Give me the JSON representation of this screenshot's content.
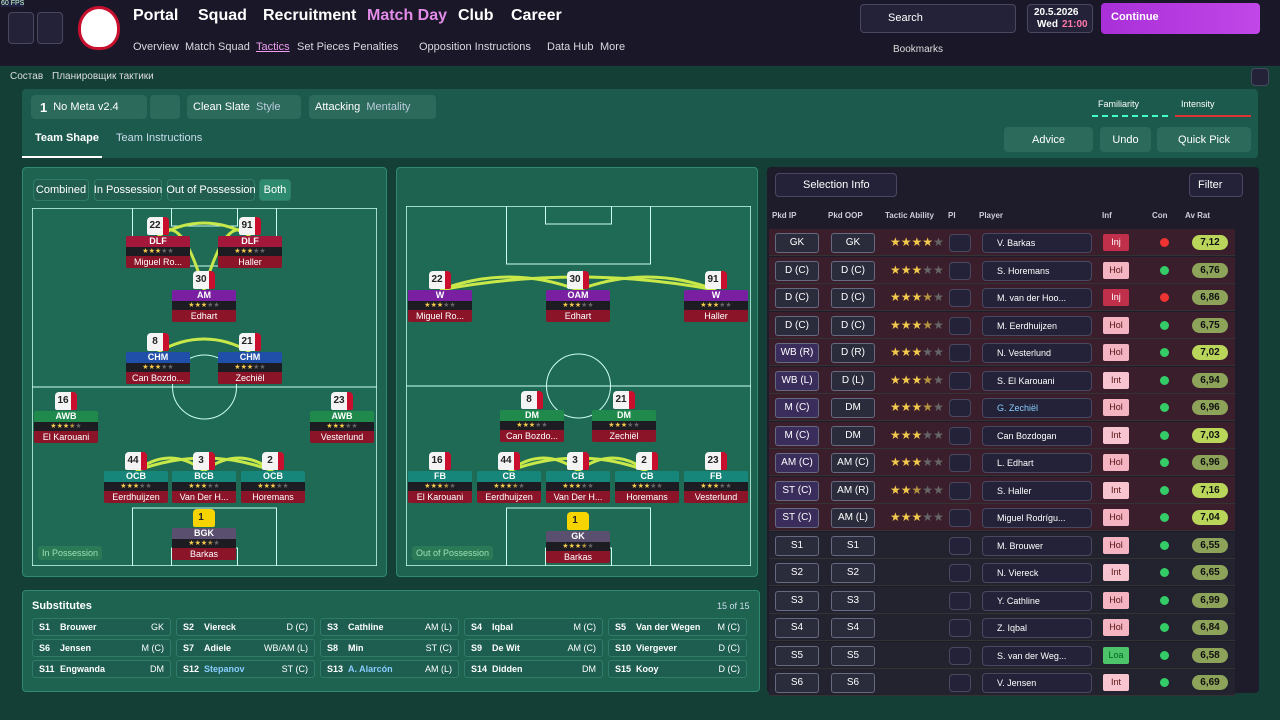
{
  "top": {
    "fps": "60 FPS",
    "menu": [
      "Portal",
      "Squad",
      "Recruitment",
      "Match Day",
      "Club",
      "Career"
    ],
    "submenu": [
      "Overview",
      "Match Squad",
      "Tactics",
      "Set Pieces",
      "Penalties",
      "Opposition Instructions",
      "Data Hub",
      "More"
    ],
    "search": "Search",
    "date": "20.5.2026",
    "weekday": "Wed",
    "time": "21:00",
    "continue": "Continue",
    "bookmarks": "Bookmarks"
  },
  "breadcrumb": [
    "Состав",
    "Планировщик тактики"
  ],
  "tactic": {
    "slot": "1",
    "name": "No Meta v2.4",
    "style": "Clean Slate",
    "style_label": "Style",
    "mentality": "Attacking",
    "mentality_label": "Mentality",
    "familiarity": "Familiarity",
    "intensity": "Intensity"
  },
  "tabs": [
    "Team Shape",
    "Team Instructions"
  ],
  "actions": [
    "Advice",
    "Undo",
    "Quick Pick"
  ],
  "pitch_filters": [
    "Combined",
    "In Possession",
    "Out of Possession",
    "Both"
  ],
  "pitches": [
    {
      "label": "In Possession",
      "players": [
        {
          "number": "22",
          "role": "DLF",
          "name": "Miguel Ro...",
          "stars": 3,
          "color": "#a3173a"
        },
        {
          "number": "91",
          "role": "DLF",
          "name": "Haller",
          "stars": 3,
          "color": "#a3173a"
        },
        {
          "number": "30",
          "role": "AM",
          "name": "Edhart",
          "stars": 3,
          "color": "#7b1fa2"
        },
        {
          "number": "8",
          "role": "CHM",
          "name": "Can Bozdo...",
          "stars": 3,
          "color": "#1f4fa8"
        },
        {
          "number": "21",
          "role": "CHM",
          "name": "Zechiël",
          "stars": 3,
          "color": "#1f4fa8"
        },
        {
          "number": "16",
          "role": "AWB",
          "name": "El Karouani",
          "stars": 3.5,
          "color": "#1f8a4c"
        },
        {
          "number": "23",
          "role": "AWB",
          "name": "Vesterlund",
          "stars": 3,
          "color": "#1f8a4c"
        },
        {
          "number": "44",
          "role": "OCB",
          "name": "Eerdhuijzen",
          "stars": 3,
          "color": "#17867a"
        },
        {
          "number": "3",
          "role": "BCB",
          "name": "Van Der H...",
          "stars": 3,
          "color": "#17867a"
        },
        {
          "number": "2",
          "role": "OCB",
          "name": "Horemans",
          "stars": 3,
          "color": "#17867a"
        },
        {
          "number": "1",
          "role": "BGK",
          "name": "Barkas",
          "stars": 3.5,
          "color": "#5a4f6e"
        }
      ]
    },
    {
      "label": "Out of Possession",
      "players": [
        {
          "number": "22",
          "role": "W",
          "name": "Miguel Ro...",
          "stars": 3,
          "color": "#7b1fa2"
        },
        {
          "number": "30",
          "role": "OAM",
          "name": "Edhart",
          "stars": 3,
          "color": "#7b1fa2"
        },
        {
          "number": "91",
          "role": "W",
          "name": "Haller",
          "stars": 3,
          "color": "#7b1fa2"
        },
        {
          "number": "8",
          "role": "DM",
          "name": "Can Bozdo...",
          "stars": 3,
          "color": "#1f8a4c"
        },
        {
          "number": "21",
          "role": "DM",
          "name": "Zechiël",
          "stars": 3,
          "color": "#1f8a4c"
        },
        {
          "number": "16",
          "role": "FB",
          "name": "El Karouani",
          "stars": 3.5,
          "color": "#17867a"
        },
        {
          "number": "44",
          "role": "CB",
          "name": "Eerdhuijzen",
          "stars": 3.5,
          "color": "#17867a"
        },
        {
          "number": "3",
          "role": "CB",
          "name": "Van Der H...",
          "stars": 3,
          "color": "#17867a"
        },
        {
          "number": "2",
          "role": "CB",
          "name": "Horemans",
          "stars": 3,
          "color": "#17867a"
        },
        {
          "number": "23",
          "role": "FB",
          "name": "Vesterlund",
          "stars": 3,
          "color": "#17867a"
        },
        {
          "number": "1",
          "role": "GK",
          "name": "Barkas",
          "stars": 3.5,
          "color": "#5a4f6e"
        }
      ]
    }
  ],
  "substitutes": {
    "title": "Substitutes",
    "count": "15 of 15",
    "players": [
      [
        "S1",
        "Brouwer",
        "GK"
      ],
      [
        "S2",
        "Viereck",
        "D (C)"
      ],
      [
        "S3",
        "Cathline",
        "AM (L)"
      ],
      [
        "S4",
        "Iqbal",
        "M (C)"
      ],
      [
        "S5",
        "Van der Wegen",
        "M (C)"
      ],
      [
        "S6",
        "Jensen",
        "M (C)"
      ],
      [
        "S7",
        "Adiele",
        "WB/AM (L)"
      ],
      [
        "S8",
        "Min",
        "ST (C)"
      ],
      [
        "S9",
        "De Wit",
        "AM (C)"
      ],
      [
        "S10",
        "Viergever",
        "D (C)"
      ],
      [
        "S11",
        "Engwanda",
        "DM"
      ],
      [
        "S12",
        "Stepanov",
        "ST (C)"
      ],
      [
        "S13",
        "A. Alarcón",
        "AM (L)"
      ],
      [
        "S14",
        "Didden",
        "DM"
      ],
      [
        "S15",
        "Kooy",
        "D (C)"
      ]
    ]
  },
  "selection": {
    "title": "Selection Info",
    "filter": "Filter",
    "columns": [
      "Pkd IP",
      "Pkd OOP",
      "Tactic Ability",
      "PI",
      "Player",
      "Inf",
      "Con",
      "Av Rat"
    ],
    "rows": [
      {
        "ip": "GK",
        "oop": "GK",
        "ability": 4,
        "player": "V. Barkas",
        "inf": "Inj",
        "rating": "7,12"
      },
      {
        "ip": "D (C)",
        "oop": "D (C)",
        "ability": 3,
        "player": "S. Horemans",
        "inf": "Hol",
        "rating": "6,76"
      },
      {
        "ip": "D (C)",
        "oop": "D (C)",
        "ability": 3.5,
        "player": "M. van der Hoo...",
        "inf": "Inj",
        "rating": "6,86"
      },
      {
        "ip": "D (C)",
        "oop": "D (C)",
        "ability": 3.5,
        "player": "M. Eerdhuijzen",
        "inf": "Hol",
        "rating": "6,75"
      },
      {
        "ip": "WB (R)",
        "oop": "D (R)",
        "ability": 3,
        "player": "N. Vesterlund",
        "inf": "Hol",
        "rating": "7,02"
      },
      {
        "ip": "WB (L)",
        "oop": "D (L)",
        "ability": 3.5,
        "player": "S. El Karouani",
        "inf": "Int",
        "rating": "6,94"
      },
      {
        "ip": "M (C)",
        "oop": "DM",
        "ability": 3.5,
        "player": "G. Zechiël",
        "inf": "Hol",
        "rating": "6,96"
      },
      {
        "ip": "M (C)",
        "oop": "DM",
        "ability": 3,
        "player": "Can Bozdogan",
        "inf": "Int",
        "rating": "7,03"
      },
      {
        "ip": "AM (C)",
        "oop": "AM (C)",
        "ability": 3,
        "player": "L. Edhart",
        "inf": "Hol",
        "rating": "6,96"
      },
      {
        "ip": "ST (C)",
        "oop": "AM (R)",
        "ability": 2.5,
        "player": "S. Haller",
        "inf": "Int",
        "rating": "7,16"
      },
      {
        "ip": "ST (C)",
        "oop": "AM (L)",
        "ability": 3,
        "player": "Miguel Rodrígu...",
        "inf": "Hol",
        "rating": "7,04"
      },
      {
        "ip": "S1",
        "oop": "S1",
        "ability": null,
        "player": "M. Brouwer",
        "inf": "Hol",
        "rating": "6,55"
      },
      {
        "ip": "S2",
        "oop": "S2",
        "ability": null,
        "player": "N. Viereck",
        "inf": "Int",
        "rating": "6,65"
      },
      {
        "ip": "S3",
        "oop": "S3",
        "ability": null,
        "player": "Y. Cathline",
        "inf": "Hol",
        "rating": "6,99"
      },
      {
        "ip": "S4",
        "oop": "S4",
        "ability": null,
        "player": "Z. Iqbal",
        "inf": "Hol",
        "rating": "6,84"
      },
      {
        "ip": "S5",
        "oop": "S5",
        "ability": null,
        "player": "S. van der Weg...",
        "inf": "Loa",
        "rating": "6,58"
      },
      {
        "ip": "S6",
        "oop": "S6",
        "ability": null,
        "player": "V. Jensen",
        "inf": "Int",
        "rating": "6,69"
      }
    ]
  }
}
